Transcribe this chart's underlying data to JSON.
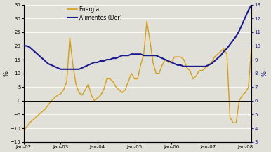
{
  "ylabel_left": "%",
  "ylabel_right": "%",
  "ylim_left": [
    -15,
    35
  ],
  "ylim_right": [
    3,
    13
  ],
  "yticks_left": [
    -15,
    -10,
    -5,
    0,
    5,
    10,
    15,
    20,
    25,
    30,
    35
  ],
  "yticks_right": [
    3,
    4,
    5,
    6,
    7,
    8,
    9,
    10,
    11,
    12,
    13
  ],
  "energia_color": "#D4A017",
  "alimentos_color": "#1A1A8C",
  "background_color": "#E0DFD8",
  "legend_energia": "Energía",
  "legend_alimentos": "Alimentos (Der)",
  "energia": [
    -11,
    -9.5,
    -8,
    -7,
    -6,
    -5,
    -4,
    -3,
    -1.5,
    0,
    1,
    2,
    2.5,
    4,
    7,
    23,
    13,
    6,
    3,
    2,
    4,
    6,
    2,
    0,
    1,
    2,
    4,
    8,
    8,
    7,
    5,
    4,
    3,
    4,
    7,
    10,
    8,
    8,
    13,
    17,
    29,
    22,
    14,
    10,
    10,
    13,
    15,
    14,
    14,
    16,
    16,
    16,
    15,
    12,
    11,
    8,
    9,
    11,
    11,
    12,
    13,
    14,
    16,
    17,
    18,
    19,
    17,
    -6,
    -8,
    -8,
    0,
    2,
    3,
    5,
    20
  ],
  "alimentos": [
    10.0,
    10.0,
    9.9,
    9.7,
    9.5,
    9.3,
    9.1,
    8.9,
    8.7,
    8.6,
    8.5,
    8.4,
    8.3,
    8.3,
    8.3,
    8.3,
    8.3,
    8.3,
    8.3,
    8.4,
    8.5,
    8.6,
    8.7,
    8.8,
    8.8,
    8.9,
    8.9,
    9.0,
    9.0,
    9.1,
    9.1,
    9.2,
    9.3,
    9.3,
    9.3,
    9.4,
    9.4,
    9.4,
    9.4,
    9.3,
    9.3,
    9.3,
    9.3,
    9.3,
    9.2,
    9.1,
    9.0,
    8.9,
    8.8,
    8.7,
    8.6,
    8.6,
    8.5,
    8.5,
    8.5,
    8.5,
    8.5,
    8.5,
    8.5,
    8.5,
    8.6,
    8.7,
    8.9,
    9.1,
    9.3,
    9.6,
    9.8,
    10.1,
    10.4,
    10.7,
    11.1,
    11.6,
    12.1,
    12.6,
    13.0
  ],
  "xtick_positions": [
    0,
    12,
    24,
    36,
    48,
    60,
    72
  ],
  "xtick_labels": [
    "Jan-02",
    "Jan-03",
    "Jan-04",
    "Jan-05",
    "Jan-06",
    "Jan-07",
    "Jan-08"
  ]
}
